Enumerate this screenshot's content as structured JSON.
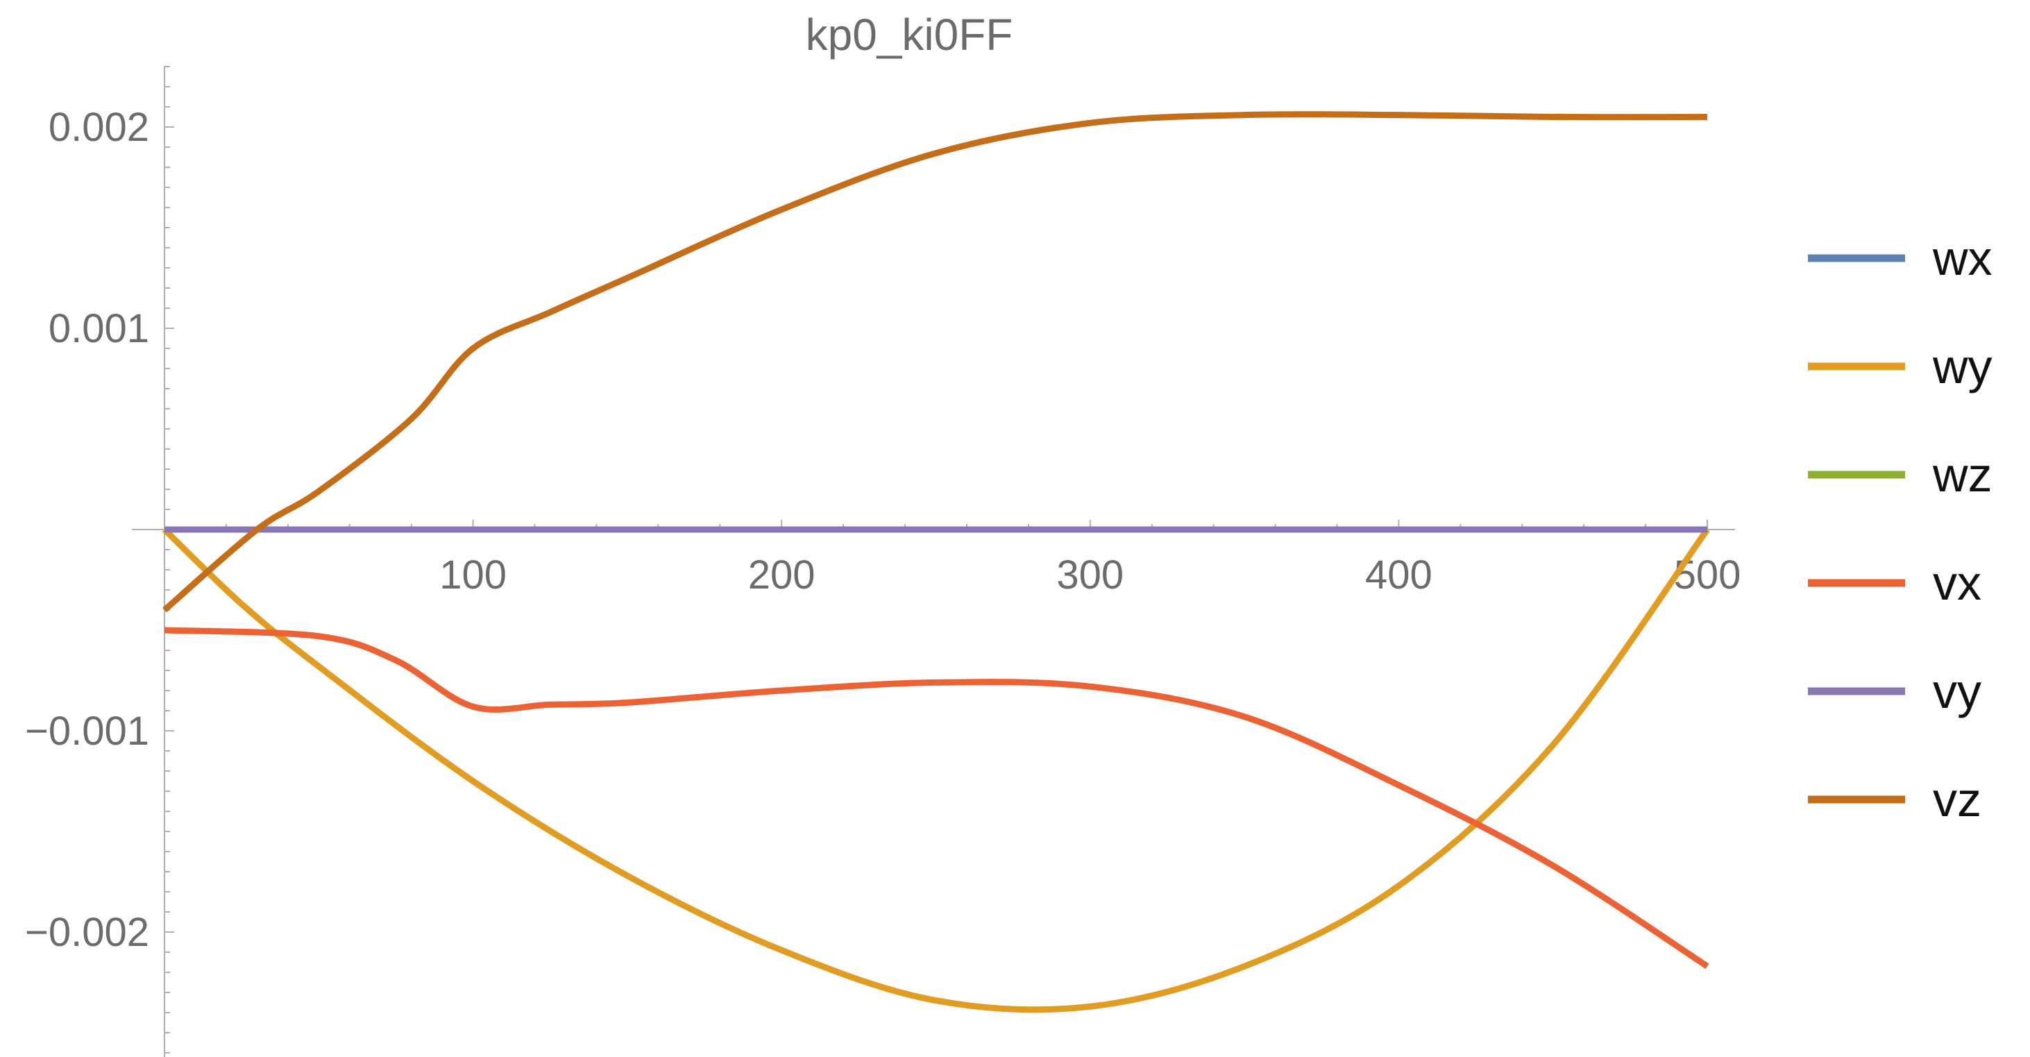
{
  "chart_data": {
    "type": "line",
    "title": "kp0_ki0FF",
    "xlabel": "",
    "ylabel": "",
    "xlim": [
      0,
      510
    ],
    "ylim": [
      -0.00258,
      0.00231
    ],
    "x_ticks": [
      100,
      200,
      300,
      400,
      500
    ],
    "x_tick_labels": [
      "100",
      "200",
      "300",
      "400",
      "500"
    ],
    "y_ticks": [
      0.002,
      0.001,
      -0.001,
      -0.002
    ],
    "y_tick_labels": [
      "0.002",
      "0.001",
      "−0.001",
      "−0.002"
    ],
    "grid": false,
    "legend_position": "right",
    "series": [
      {
        "name": "wx",
        "color": "#5e81b5",
        "x": [
          0,
          500
        ],
        "y": [
          0,
          0
        ]
      },
      {
        "name": "wy",
        "color": "#e19c24",
        "x": [
          0,
          25,
          50,
          100,
          150,
          200,
          250,
          300,
          350,
          400,
          450,
          500
        ],
        "y": [
          0,
          -0.00037,
          -0.00068,
          -0.00125,
          -0.00172,
          -0.00209,
          -0.00234,
          -0.00237,
          -0.00217,
          -0.00177,
          -0.00107,
          0
        ]
      },
      {
        "name": "wz",
        "color": "#8fb032",
        "x": [
          0,
          500
        ],
        "y": [
          0,
          0
        ]
      },
      {
        "name": "vx",
        "color": "#eb6235",
        "x": [
          0,
          50,
          75,
          100,
          125,
          150,
          200,
          250,
          300,
          350,
          400,
          450,
          500
        ],
        "y": [
          -0.0005,
          -0.00053,
          -0.00065,
          -0.00088,
          -0.00087,
          -0.00086,
          -0.0008,
          -0.00076,
          -0.00078,
          -0.00093,
          -0.00127,
          -0.00167,
          -0.00217
        ]
      },
      {
        "name": "vy",
        "color": "#8778b3",
        "x": [
          0,
          500
        ],
        "y": [
          0,
          0
        ]
      },
      {
        "name": "vz",
        "color": "#c56e1a",
        "x": [
          0,
          30,
          50,
          80,
          100,
          125,
          150,
          200,
          250,
          300,
          350,
          400,
          450,
          500
        ],
        "y": [
          -0.0004,
          0,
          0.00019,
          0.00055,
          0.0009,
          0.00108,
          0.00125,
          0.00159,
          0.00187,
          0.00202,
          0.00206,
          0.00206,
          0.00205,
          0.00205
        ]
      }
    ]
  }
}
